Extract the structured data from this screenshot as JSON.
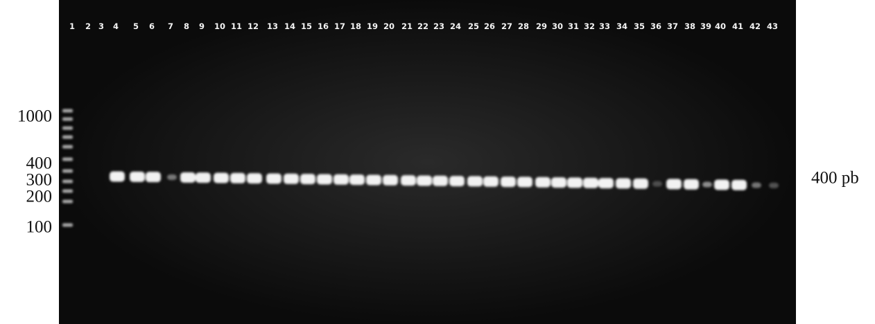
{
  "lanes": [
    "1",
    "2",
    "3",
    "4",
    "5",
    "6",
    "7",
    "8",
    "9",
    "10",
    "11",
    "12",
    "13",
    "14",
    "15",
    "16",
    "17",
    "18",
    "19",
    "20",
    "21",
    "22",
    "23",
    "24",
    "25",
    "26",
    "27",
    "28",
    "29",
    "30",
    "31",
    "32",
    "33",
    "34",
    "35",
    "36",
    "37",
    "38",
    "39",
    "40",
    "41",
    "42",
    "43"
  ],
  "markers": [
    "1000",
    "400",
    "300",
    "200",
    "100"
  ],
  "band_label": "400 pb"
}
